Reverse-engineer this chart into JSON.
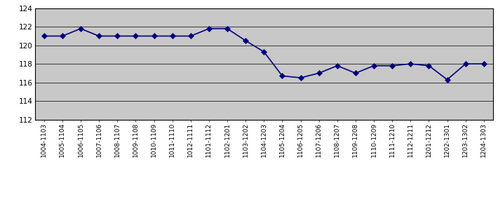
{
  "x_labels": [
    "1004-1103",
    "1005-1104",
    "1006-1105",
    "1007-1106",
    "1008-1107",
    "1009-1108",
    "1010-1109",
    "1011-1110",
    "1012-1111",
    "1101-1112",
    "1102-1201",
    "1103-1202",
    "1104-1203",
    "1105-1204",
    "1106-1205",
    "1107-1206",
    "1108-1207",
    "1109-1208",
    "1110-1209",
    "1111-1210",
    "1112-1211",
    "1201-1212",
    "1202-1301",
    "1203-1302",
    "1204-1303"
  ],
  "y_values": [
    121.0,
    121.0,
    121.8,
    121.0,
    121.0,
    121.0,
    121.0,
    121.0,
    121.0,
    121.8,
    121.8,
    120.5,
    119.3,
    116.7,
    116.5,
    117.0,
    117.8,
    117.0,
    117.8,
    117.8,
    118.0,
    117.8,
    116.3,
    118.0,
    118.0
  ],
  "ylim": [
    112,
    124
  ],
  "yticks": [
    112,
    114,
    116,
    118,
    120,
    122,
    124
  ],
  "line_color": "#000080",
  "marker_color": "#000080",
  "bg_color": "#C8C8C8",
  "outer_bg": "#FFFFFF",
  "marker": "D",
  "marker_size": 4,
  "line_width": 1.2
}
